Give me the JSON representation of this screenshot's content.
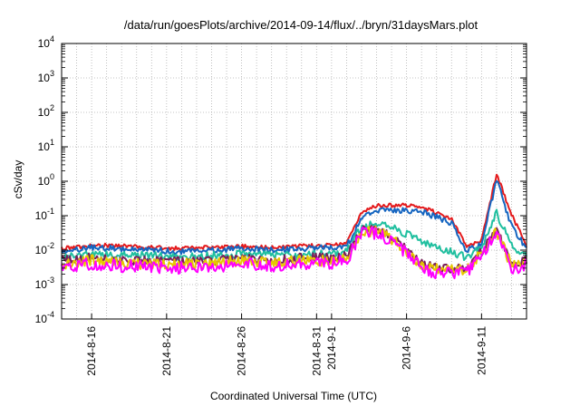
{
  "chart_data": {
    "type": "line",
    "title": "/data/run/goesPlots/archive/2014-09-14/flux/../bryn/31daysMars.plot",
    "xlabel": "Coordinated Universal Time (UTC)",
    "ylabel": "cSv/day",
    "yscale": "log",
    "ylim": [
      0.0001,
      10000
    ],
    "xlim": [
      "2014-08-14",
      "2014-09-14"
    ],
    "grid": true,
    "y_ticks": [
      {
        "value": 0.0001,
        "base": "10",
        "exp": "-4"
      },
      {
        "value": 0.001,
        "base": "10",
        "exp": "-3"
      },
      {
        "value": 0.01,
        "base": "10",
        "exp": "-2"
      },
      {
        "value": 0.1,
        "base": "10",
        "exp": "-1"
      },
      {
        "value": 1,
        "base": "10",
        "exp": "0"
      },
      {
        "value": 10,
        "base": "10",
        "exp": "1"
      },
      {
        "value": 100,
        "base": "10",
        "exp": "2"
      },
      {
        "value": 1000,
        "base": "10",
        "exp": "3"
      },
      {
        "value": 10000,
        "base": "10",
        "exp": "4"
      }
    ],
    "x_tick_labels": [
      {
        "date": "2014-08-16",
        "label": "2014-8-16"
      },
      {
        "date": "2014-08-21",
        "label": "2014-8-21"
      },
      {
        "date": "2014-08-26",
        "label": "2014-8-26"
      },
      {
        "date": "2014-08-31",
        "label": "2014-8-31"
      },
      {
        "date": "2014-09-01",
        "label": "2014-9-1"
      },
      {
        "date": "2014-09-06",
        "label": "2014-9-6"
      },
      {
        "date": "2014-09-11",
        "label": "2014-9-11"
      }
    ],
    "x_dates": [
      "2014-08-14",
      "2014-08-16",
      "2014-08-18",
      "2014-08-20",
      "2014-08-22",
      "2014-08-24",
      "2014-08-26",
      "2014-08-28",
      "2014-08-30",
      "2014-09-01",
      "2014-09-02",
      "2014-09-03",
      "2014-09-04",
      "2014-09-05",
      "2014-09-06",
      "2014-09-07",
      "2014-09-08",
      "2014-09-09",
      "2014-09-10",
      "2014-09-11",
      "2014-09-12",
      "2014-09-13",
      "2014-09-14"
    ],
    "series": [
      {
        "color": "#e41a1c",
        "values": [
          0.011,
          0.014,
          0.013,
          0.012,
          0.011,
          0.012,
          0.013,
          0.012,
          0.013,
          0.014,
          0.015,
          0.12,
          0.2,
          0.2,
          0.2,
          0.18,
          0.12,
          0.08,
          0.013,
          0.02,
          1.6,
          0.11,
          0.013
        ]
      },
      {
        "color": "#1565c0",
        "values": [
          0.009,
          0.012,
          0.011,
          0.01,
          0.009,
          0.01,
          0.011,
          0.01,
          0.011,
          0.012,
          0.013,
          0.08,
          0.15,
          0.14,
          0.14,
          0.13,
          0.09,
          0.06,
          0.01,
          0.015,
          1.1,
          0.05,
          0.011
        ]
      },
      {
        "color": "#1fbf9f",
        "values": [
          0.006,
          0.008,
          0.007,
          0.007,
          0.006,
          0.007,
          0.008,
          0.007,
          0.007,
          0.008,
          0.009,
          0.05,
          0.06,
          0.045,
          0.03,
          0.018,
          0.011,
          0.009,
          0.006,
          0.012,
          0.12,
          0.013,
          0.007
        ]
      },
      {
        "color": "#7a1e5a",
        "values": [
          0.005,
          0.006,
          0.005,
          0.005,
          0.005,
          0.005,
          0.006,
          0.005,
          0.006,
          0.006,
          0.007,
          0.04,
          0.04,
          0.025,
          0.01,
          0.004,
          0.003,
          0.0028,
          0.003,
          0.009,
          0.04,
          0.004,
          0.005
        ]
      },
      {
        "color": "#e6c800",
        "values": [
          0.004,
          0.005,
          0.004,
          0.004,
          0.004,
          0.004,
          0.005,
          0.004,
          0.005,
          0.005,
          0.006,
          0.035,
          0.035,
          0.022,
          0.009,
          0.0035,
          0.0028,
          0.0026,
          0.0028,
          0.008,
          0.035,
          0.0035,
          0.004
        ]
      },
      {
        "color": "#ff00ff",
        "values": [
          0.003,
          0.004,
          0.0035,
          0.0033,
          0.003,
          0.0033,
          0.004,
          0.0035,
          0.004,
          0.004,
          0.005,
          0.03,
          0.03,
          0.018,
          0.008,
          0.003,
          0.0022,
          0.002,
          0.0022,
          0.007,
          0.03,
          0.003,
          0.0035
        ]
      }
    ]
  }
}
